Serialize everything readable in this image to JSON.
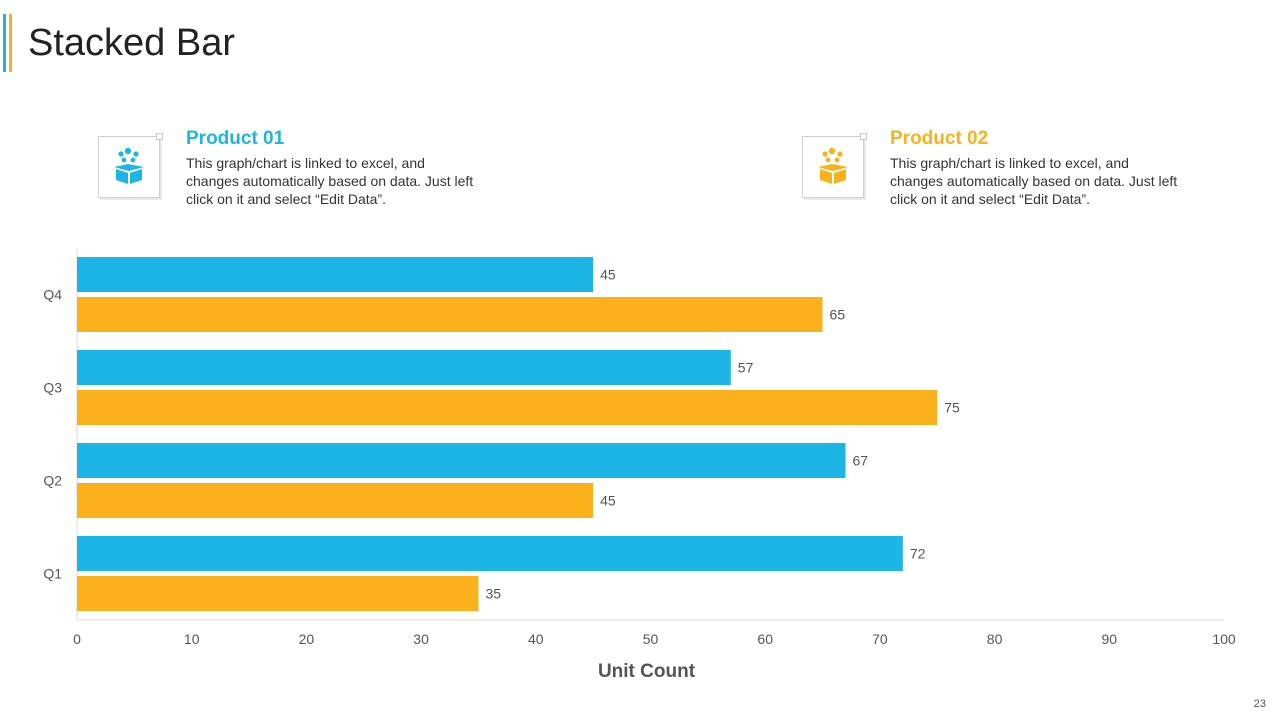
{
  "slide": {
    "title": "Stacked Bar",
    "page_number": "23"
  },
  "colors": {
    "product1": "#1cb5e6",
    "product2": "#fbb11b",
    "axis_text": "#555555"
  },
  "legend": [
    {
      "title": "Product 01",
      "description": "This graph/chart is linked to excel, and changes automatically based on data. Just left click on it and select “Edit Data”.",
      "icon": "box-icon"
    },
    {
      "title": "Product 02",
      "description": "This graph/chart is linked to excel, and changes automatically based on data. Just left click on it and select “Edit Data”.",
      "icon": "box-icon"
    }
  ],
  "chart_data": {
    "type": "bar",
    "orientation": "horizontal",
    "title": "Stacked Bar",
    "categories": [
      "Q1",
      "Q2",
      "Q3",
      "Q4"
    ],
    "series": [
      {
        "name": "Product 01",
        "values": [
          72,
          67,
          57,
          45
        ]
      },
      {
        "name": "Product 02",
        "values": [
          35,
          45,
          75,
          65
        ]
      }
    ],
    "xlabel": "Unit Count",
    "ylabel": "",
    "xlim": [
      0,
      100
    ],
    "xticks": [
      0,
      10,
      20,
      30,
      40,
      50,
      60,
      70,
      80,
      90,
      100
    ],
    "grid": false
  }
}
